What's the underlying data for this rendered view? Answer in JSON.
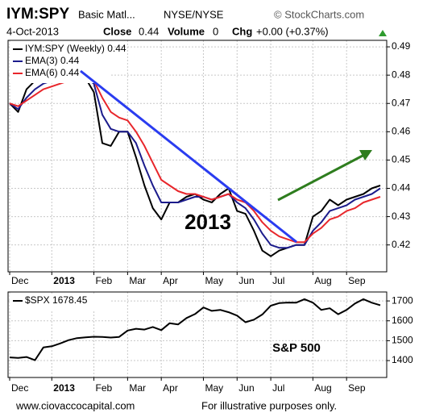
{
  "header": {
    "symbol": "IYM:SPY",
    "name": "Basic Matl...",
    "exchange": "NYSE/NYSE",
    "source": "© StockCharts.com",
    "date": "4-Oct-2013",
    "close_label": "Close",
    "close": "0.44",
    "volume_label": "Volume",
    "volume": "0",
    "chg_label": "Chg",
    "chg": "+0.00 (+0.37%)"
  },
  "chart_data": [
    {
      "type": "line",
      "annotations": [
        "2013"
      ],
      "xlim": [
        0,
        44
      ],
      "xticks": [
        {
          "value": 0,
          "label": "Dec"
        },
        {
          "value": 5,
          "label": "2013"
        },
        {
          "value": 10,
          "label": "Feb"
        },
        {
          "value": 14,
          "label": "Mar"
        },
        {
          "value": 18,
          "label": "Apr"
        },
        {
          "value": 23,
          "label": "May"
        },
        {
          "value": 27,
          "label": "Jun"
        },
        {
          "value": 31,
          "label": "Jul"
        },
        {
          "value": 36,
          "label": "Aug"
        },
        {
          "value": 40,
          "label": "Sep"
        }
      ],
      "ylim": [
        0.4105,
        0.4923
      ],
      "yticks": [
        0.42,
        0.43,
        0.44,
        0.45,
        0.46,
        0.47,
        0.48,
        0.49
      ],
      "grid": true,
      "legend": "top-left",
      "series": [
        {
          "name": "IYM:SPY (Weekly) 0.44",
          "color": "#000000",
          "values": [
            0.47,
            0.467,
            0.475,
            0.478,
            0.479,
            0.48,
            0.481,
            0.481,
            0.48,
            0.479,
            0.474,
            0.456,
            0.455,
            0.46,
            0.46,
            0.451,
            0.441,
            0.433,
            0.429,
            0.435,
            0.435,
            0.437,
            0.438,
            0.436,
            0.435,
            0.438,
            0.44,
            0.432,
            0.431,
            0.425,
            0.418,
            0.416,
            0.418,
            0.419,
            0.42,
            0.42,
            0.43,
            0.432,
            0.436,
            0.434,
            0.436,
            0.437,
            0.438,
            0.44,
            0.441
          ]
        },
        {
          "name": "EMA(3) 0.44",
          "color": "#1c1c8c",
          "values": [
            0.47,
            0.468,
            0.472,
            0.475,
            0.477,
            0.478,
            0.48,
            0.48,
            0.48,
            0.479,
            0.477,
            0.466,
            0.461,
            0.46,
            0.46,
            0.456,
            0.448,
            0.441,
            0.435,
            0.435,
            0.435,
            0.436,
            0.437,
            0.437,
            0.436,
            0.437,
            0.438,
            0.435,
            0.433,
            0.429,
            0.424,
            0.42,
            0.419,
            0.419,
            0.42,
            0.42,
            0.425,
            0.428,
            0.432,
            0.433,
            0.434,
            0.436,
            0.437,
            0.438,
            0.44
          ]
        },
        {
          "name": "EMA(6) 0.44",
          "color": "#e8262b",
          "values": [
            0.47,
            0.469,
            0.471,
            0.473,
            0.475,
            0.476,
            0.477,
            0.478,
            0.479,
            0.479,
            0.478,
            0.472,
            0.467,
            0.465,
            0.464,
            0.46,
            0.455,
            0.449,
            0.443,
            0.441,
            0.439,
            0.438,
            0.438,
            0.437,
            0.436,
            0.437,
            0.438,
            0.436,
            0.435,
            0.432,
            0.428,
            0.425,
            0.423,
            0.422,
            0.421,
            0.421,
            0.424,
            0.426,
            0.429,
            0.43,
            0.432,
            0.433,
            0.435,
            0.436,
            0.437
          ]
        }
      ]
    },
    {
      "type": "line",
      "annotations": [
        "S&P 500"
      ],
      "xlim": [
        0,
        44
      ],
      "xticks": [
        {
          "value": 0,
          "label": "Dec"
        },
        {
          "value": 5,
          "label": "2013"
        },
        {
          "value": 10,
          "label": "Feb"
        },
        {
          "value": 14,
          "label": "Mar"
        },
        {
          "value": 18,
          "label": "Apr"
        },
        {
          "value": 23,
          "label": "May"
        },
        {
          "value": 27,
          "label": "Jun"
        },
        {
          "value": 31,
          "label": "Jul"
        },
        {
          "value": 36,
          "label": "Aug"
        },
        {
          "value": 40,
          "label": "Sep"
        }
      ],
      "ylim": [
        1315,
        1745
      ],
      "yticks": [
        1400,
        1500,
        1600,
        1700
      ],
      "grid": true,
      "legend": "top-left",
      "series": [
        {
          "name": "$SPX  1678.45",
          "color": "#000000",
          "values": [
            1416,
            1413,
            1418,
            1402,
            1466,
            1472,
            1486,
            1503,
            1513,
            1517,
            1520,
            1519,
            1516,
            1519,
            1551,
            1560,
            1556,
            1569,
            1553,
            1588,
            1582,
            1614,
            1634,
            1667,
            1650,
            1655,
            1643,
            1626,
            1593,
            1606,
            1632,
            1676,
            1689,
            1692,
            1691,
            1709,
            1691,
            1655,
            1663,
            1633,
            1655,
            1687,
            1709,
            1691,
            1678.45
          ]
        }
      ]
    }
  ],
  "footer": {
    "url": "www.ciovaccocapital.com",
    "note": "For illustrative purposes only."
  }
}
